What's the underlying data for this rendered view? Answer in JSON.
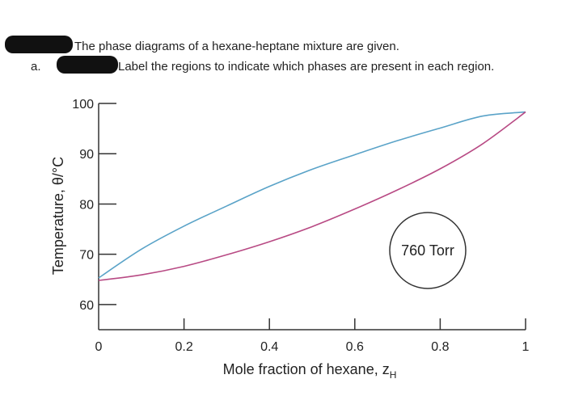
{
  "header": {
    "line1": "The phase diagrams of a hexane-heptane mixture are given.",
    "part_label": "a.",
    "line2": "Label the regions to indicate which phases are present in each region."
  },
  "chart_data": {
    "type": "line",
    "xlabel": "Mole fraction of hexane, z",
    "xlabel_subscript": "H",
    "ylabel": "Temperature, θ/°C",
    "xlim": [
      0,
      1
    ],
    "ylim": [
      55,
      100
    ],
    "x_ticks": [
      0,
      0.2,
      0.4,
      0.6,
      0.8,
      1
    ],
    "x_tick_labels": [
      "0",
      "0.2",
      "0.4",
      "0.6",
      "0.8",
      "1"
    ],
    "y_ticks": [
      60,
      70,
      80,
      90,
      100
    ],
    "y_tick_labels": [
      "60",
      "70",
      "80",
      "90",
      "100"
    ],
    "annotation": "760 Torr",
    "series": [
      {
        "color": "#5aa3c8",
        "x": [
          0,
          0.1,
          0.2,
          0.3,
          0.4,
          0.5,
          0.6,
          0.7,
          0.8,
          0.9,
          1.0
        ],
        "y": [
          65.3,
          71.0,
          75.6,
          79.6,
          83.5,
          86.9,
          89.8,
          92.6,
          95.1,
          97.5,
          98.3
        ]
      },
      {
        "color": "#b84a84",
        "x": [
          0,
          0.1,
          0.2,
          0.3,
          0.4,
          0.5,
          0.6,
          0.7,
          0.8,
          0.9,
          1.0
        ],
        "y": [
          64.8,
          65.9,
          67.6,
          69.9,
          72.5,
          75.5,
          79.0,
          82.8,
          87.0,
          92.0,
          98.3
        ]
      }
    ]
  }
}
